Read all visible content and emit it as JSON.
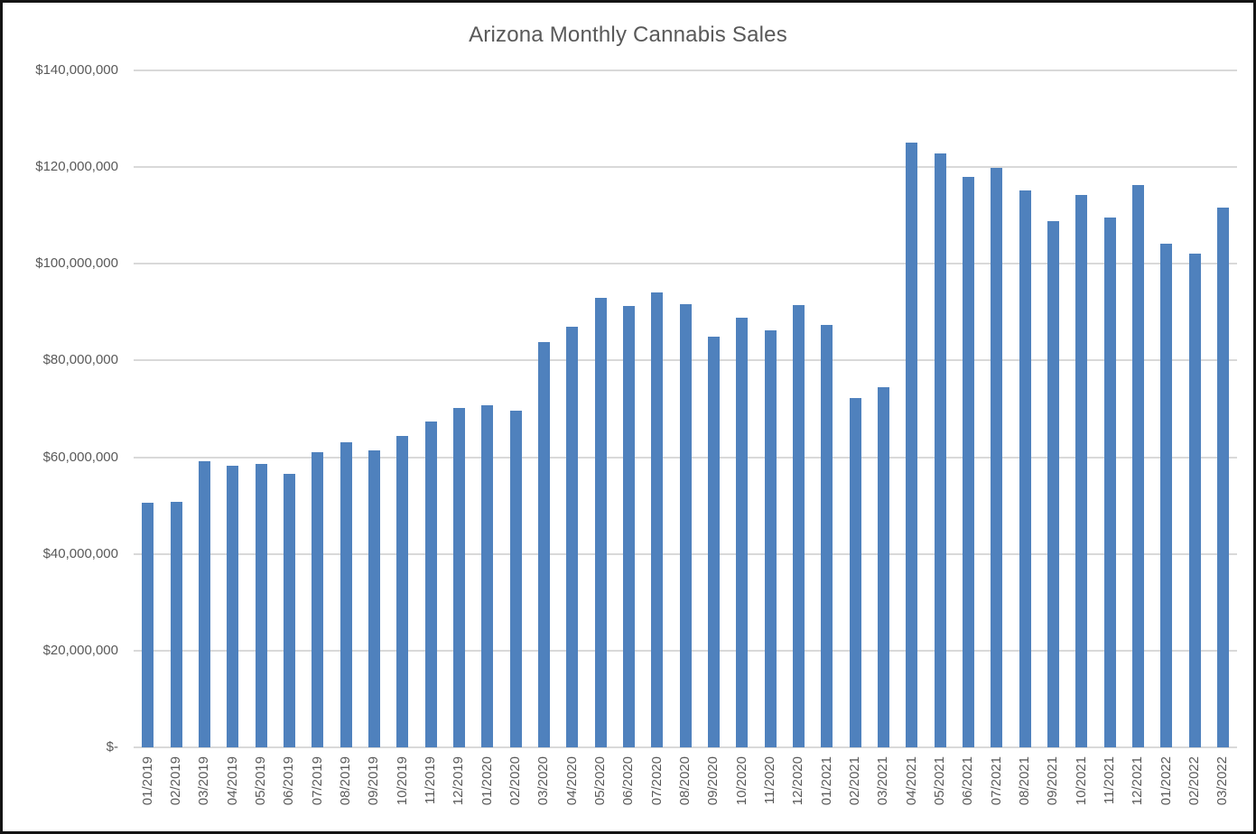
{
  "chart_data": {
    "type": "bar",
    "title": "Arizona Monthly Cannabis Sales",
    "xlabel": "",
    "ylabel": "",
    "grid": true,
    "legend": "none",
    "ylim": [
      0,
      140000000
    ],
    "y_tick_interval": 20000000,
    "y_ticks": [
      {
        "value": 0,
        "label": "$-"
      },
      {
        "value": 20000000,
        "label": "$20,000,000"
      },
      {
        "value": 40000000,
        "label": "$40,000,000"
      },
      {
        "value": 60000000,
        "label": "$60,000,000"
      },
      {
        "value": 80000000,
        "label": "$80,000,000"
      },
      {
        "value": 100000000,
        "label": "$100,000,000"
      },
      {
        "value": 120000000,
        "label": "$120,000,000"
      },
      {
        "value": 140000000,
        "label": "$140,000,000"
      }
    ],
    "categories": [
      "01/2019",
      "02/2019",
      "03/2019",
      "04/2019",
      "05/2019",
      "06/2019",
      "07/2019",
      "08/2019",
      "09/2019",
      "10/2019",
      "11/2019",
      "12/2019",
      "01/2020",
      "02/2020",
      "03/2020",
      "04/2020",
      "05/2020",
      "06/2020",
      "07/2020",
      "08/2020",
      "09/2020",
      "10/2020",
      "11/2020",
      "12/2020",
      "01/2021",
      "02/2021",
      "03/2021",
      "04/2021",
      "05/2021",
      "06/2021",
      "07/2021",
      "08/2021",
      "09/2021",
      "10/2021",
      "11/2021",
      "12/2021",
      "01/2022",
      "02/2022",
      "03/2022"
    ],
    "values": [
      50600000,
      50800000,
      59200000,
      58200000,
      58700000,
      56600000,
      61100000,
      63100000,
      61500000,
      64400000,
      67300000,
      70200000,
      70800000,
      69600000,
      83800000,
      86900000,
      93000000,
      91300000,
      94100000,
      91700000,
      85000000,
      88900000,
      86200000,
      91500000,
      87400000,
      72300000,
      74400000,
      125000000,
      122900000,
      118000000,
      119900000,
      115100000,
      108800000,
      114300000,
      109600000,
      116200000,
      104200000,
      102100000,
      111700000
    ],
    "colors": {
      "bar": "#4F81BD",
      "gridline": "#D9D9D9",
      "axis_line": "#D9D9D9",
      "tick_label": "#595959",
      "title": "#595959",
      "background": "#FFFFFF",
      "frame_border": "#141414"
    }
  }
}
